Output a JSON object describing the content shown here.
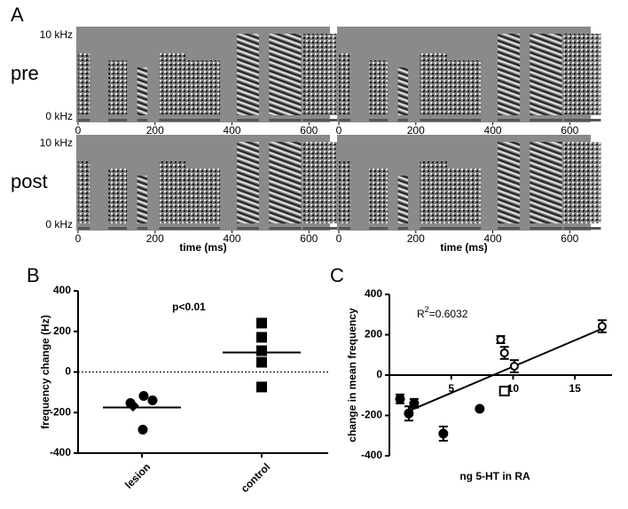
{
  "chart_data": [
    {
      "type": "spectrogram",
      "panel_label": "A",
      "rows": [
        "pre",
        "post"
      ],
      "ylim": [
        0,
        10
      ],
      "yticks": [
        {
          "value": 0,
          "label": "0 kHz"
        },
        {
          "value": 10,
          "label": "10 kHz"
        }
      ],
      "xlim": [
        0,
        650
      ],
      "xticks": [
        0,
        200,
        400,
        600
      ],
      "xlabel": "time (ms)"
    },
    {
      "type": "strip",
      "panel_label": "B",
      "ylabel": "frequency change (Hz)",
      "annotation": "p<0.01",
      "categories": [
        "lesion",
        "control"
      ],
      "ylim": [
        -400,
        400
      ],
      "yticks": [
        -400,
        -200,
        0,
        200,
        400
      ],
      "series": [
        {
          "values": [
            -118,
            -140,
            -153,
            -166,
            -284
          ],
          "markers": [
            "circle",
            "circle",
            "circle",
            "diamond",
            "circle"
          ],
          "color": "#000000"
        },
        {
          "values": [
            241,
            171,
            105,
            48,
            -74
          ],
          "markers": [
            "square",
            "square",
            "square",
            "square",
            "square"
          ],
          "color": "#000000"
        }
      ],
      "means": [
        -175,
        96
      ]
    },
    {
      "type": "scatter",
      "panel_label": "C",
      "xlabel": "ng 5-HT in RA",
      "ylabel": "change in mean frequency",
      "annotation": [
        "R",
        "2",
        "=0.6032"
      ],
      "xlim": [
        0,
        18
      ],
      "xticks": [
        5,
        10,
        15
      ],
      "ylim": [
        -400,
        400
      ],
      "yticks": [
        -400,
        -200,
        0,
        200,
        400
      ],
      "series": [
        {
          "x": [
            0.86,
            1.57,
            2.0,
            4.36,
            7.3
          ],
          "values": [
            -118,
            -190,
            -140,
            -290,
            -167
          ],
          "errors": [
            22,
            35,
            22,
            35,
            null
          ],
          "filled": true,
          "color": "#000000"
        },
        {
          "x": [
            9.0,
            9.3,
            10.1,
            9.3,
            17.2
          ],
          "values": [
            176,
            110,
            44,
            -79,
            242
          ],
          "errors": [
            18,
            30,
            30,
            15,
            30
          ],
          "filled": false,
          "color": "#000000"
        }
      ],
      "fit": {
        "x": [
          1.3,
          17.2
        ],
        "y": [
          -185,
          230
        ]
      }
    }
  ]
}
